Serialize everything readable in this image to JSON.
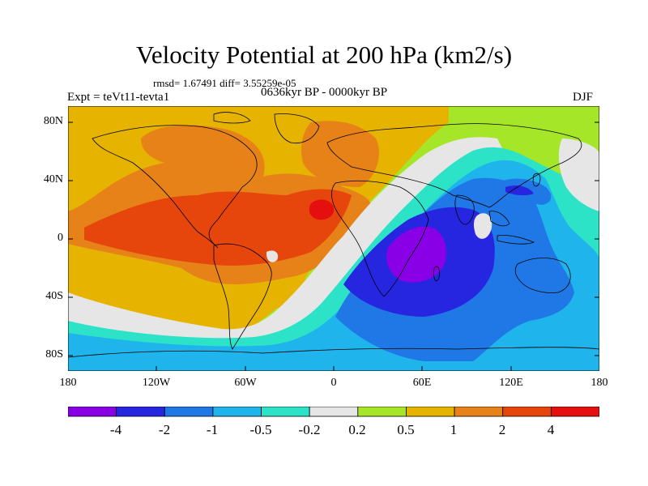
{
  "title": "Velocity Potential at 200 hPa (km2/s)",
  "stats": "rmsd= 1.67491 diff= 3.55259e-05",
  "experiment": "Expt = teVt11-tevta1",
  "period": "0636kyr BP - 0000kyr BP",
  "season": "DJF",
  "map": {
    "lat_ticks": [
      "80N",
      "40N",
      "0",
      "40S",
      "80S"
    ],
    "lon_ticks": [
      "180",
      "120W",
      "60W",
      "0",
      "60E",
      "120E",
      "180"
    ]
  },
  "colorbar": {
    "labels": [
      "-4",
      "-2",
      "-1",
      "-0.5",
      "-0.2",
      "0.2",
      "0.5",
      "1",
      "2",
      "4"
    ],
    "colors": [
      "#8a00e6",
      "#2626e0",
      "#1f78e6",
      "#1fb4ec",
      "#2ce3c8",
      "#e6e6e6",
      "#a6e628",
      "#e6b400",
      "#e68217",
      "#e6460c",
      "#e60f0f"
    ]
  },
  "colors": {
    "neg4": "#8a00e6",
    "neg2": "#2626e0",
    "neg1": "#1f78e6",
    "neg05": "#1fb4ec",
    "neg02": "#2ce3c8",
    "zero": "#e6e6e6",
    "pos02": "#a6e628",
    "pos05": "#e6b400",
    "pos1": "#e68217",
    "pos2": "#e6460c",
    "pos4": "#e60f0f"
  }
}
